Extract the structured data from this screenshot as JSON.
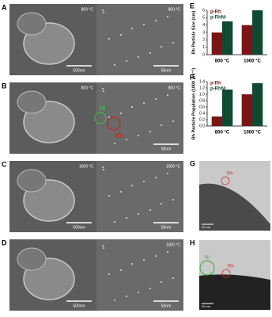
{
  "chart_data": [
    {
      "type": "bar",
      "label": "E",
      "ylabel": "Rh Particle Size (nm)",
      "categories": [
        "800 °C",
        "1000 °C"
      ],
      "series": [
        {
          "name": "p-Rh",
          "color": "#7b1515",
          "values": [
            3,
            4
          ]
        },
        {
          "name": "p-RhNi",
          "color": "#0f4a33",
          "values": [
            4.5,
            6
          ]
        }
      ],
      "ylim": [
        0,
        6
      ],
      "yticks": [
        0,
        1,
        2,
        3,
        4,
        5,
        6
      ]
    },
    {
      "type": "bar",
      "label": "F",
      "ylabel": "Rh Particle Population (1000 µm⁻²)",
      "categories": [
        "800 °C",
        "1000 °C"
      ],
      "series": [
        {
          "name": "p-Rh",
          "color": "#7b1515",
          "values": [
            0.3,
            1.0
          ]
        },
        {
          "name": "p-RhNi",
          "color": "#0f4a33",
          "values": [
            1.15,
            1.35
          ]
        }
      ],
      "ylim": [
        0,
        1.4
      ],
      "yticks": [
        {
          "value": 0,
          "label": "0.0"
        },
        0.2,
        0.4,
        0.6,
        0.8,
        {
          "value": 1,
          "label": "1.0"
        },
        1.2,
        1.4
      ]
    }
  ],
  "panels": [
    {
      "letter": "A",
      "left": {
        "temperature": "800 °C",
        "scale": "500nm"
      },
      "right": {
        "temperature": "800 °C",
        "scale": "50nm"
      }
    },
    {
      "letter": "B",
      "left": {
        "temperature": "800 °C"
      },
      "right": {
        "temperature": "800 °C",
        "scale": "50nm",
        "ni": "Ni",
        "rh": "Rh"
      }
    },
    {
      "letter": "C",
      "left": {
        "temperature": "1000 °C",
        "scale": "500nm"
      },
      "right": {
        "temperature": "1000 °C",
        "scale": "50nm"
      }
    },
    {
      "letter": "D",
      "left": {
        "scale": "500nm"
      },
      "right": {
        "temperature": "1000 °C",
        "scale": "50nm"
      }
    }
  ],
  "tem": [
    {
      "letter": "G",
      "rh": "Rh",
      "scale": "20 nm"
    },
    {
      "letter": "H",
      "ni": "Ni",
      "rh": "Rh",
      "scale": "20 nm"
    }
  ]
}
